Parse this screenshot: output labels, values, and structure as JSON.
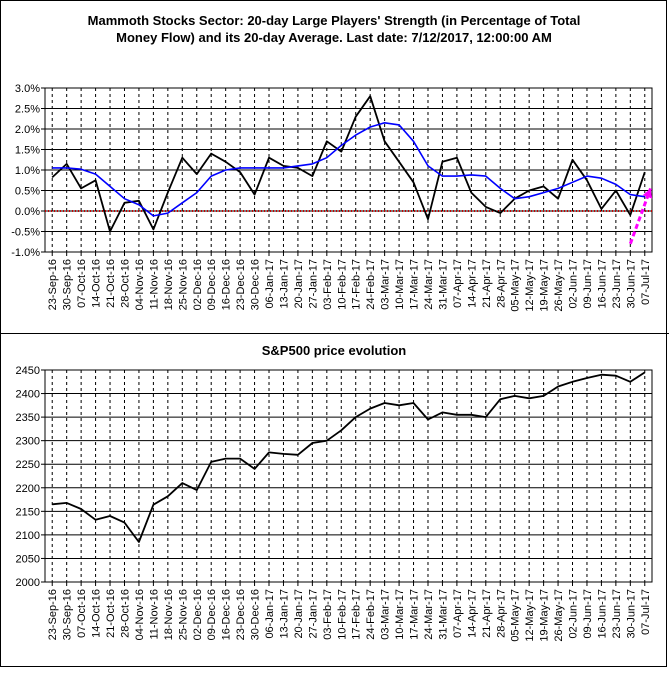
{
  "chart_data": [
    {
      "type": "line",
      "title_lines": [
        "Mammoth Stocks Sector: 20-day Large Players' Strength (in Percentage of Total",
        "Money Flow) and its 20-day Average. Last date: 7/12/2017, 12:00:00 AM"
      ],
      "ylim": [
        -1.0,
        3.0
      ],
      "y_ticks": [
        "3.0%",
        "2.5%",
        "2.0%",
        "1.5%",
        "1.0%",
        "0.5%",
        "0.0%",
        "-0.5%",
        "-1.0%"
      ],
      "y_tick_values": [
        3.0,
        2.5,
        2.0,
        1.5,
        1.0,
        0.5,
        0.0,
        -0.5,
        -1.0
      ],
      "categories": [
        "23-Sep-16",
        "30-Sep-16",
        "07-Oct-16",
        "14-Oct-16",
        "21-Oct-16",
        "28-Oct-16",
        "04-Nov-16",
        "11-Nov-16",
        "18-Nov-16",
        "25-Nov-16",
        "02-Dec-16",
        "09-Dec-16",
        "16-Dec-16",
        "23-Dec-16",
        "30-Dec-16",
        "06-Jan-17",
        "13-Jan-17",
        "20-Jan-17",
        "27-Jan-17",
        "03-Feb-17",
        "10-Feb-17",
        "17-Feb-17",
        "24-Feb-17",
        "03-Mar-17",
        "10-Mar-17",
        "17-Mar-17",
        "24-Mar-17",
        "31-Mar-17",
        "07-Apr-17",
        "14-Apr-17",
        "21-Apr-17",
        "28-Apr-17",
        "05-May-17",
        "12-May-17",
        "19-May-17",
        "26-May-17",
        "02-Jun-17",
        "09-Jun-17",
        "16-Jun-17",
        "23-Jun-17",
        "30-Jun-17",
        "07-Jul-17"
      ],
      "series": [
        {
          "key": "strength",
          "color": "#000000",
          "values": [
            0.82,
            1.15,
            0.55,
            0.75,
            -0.5,
            0.2,
            0.25,
            -0.45,
            0.45,
            1.3,
            0.9,
            1.4,
            1.2,
            0.95,
            0.4,
            1.3,
            1.1,
            1.05,
            0.85,
            1.7,
            1.45,
            2.3,
            2.8,
            1.7,
            1.2,
            0.7,
            -0.2,
            1.2,
            1.3,
            0.45,
            0.1,
            -0.05,
            0.3,
            0.5,
            0.6,
            0.3,
            1.25,
            0.75,
            0.05,
            0.5,
            -0.1,
            0.95
          ]
        },
        {
          "key": "avg20",
          "color": "#0000ff",
          "values": [
            1.05,
            1.05,
            1.02,
            0.9,
            0.6,
            0.3,
            0.15,
            -0.12,
            -0.05,
            0.2,
            0.45,
            0.85,
            1.0,
            1.05,
            1.05,
            1.05,
            1.05,
            1.1,
            1.15,
            1.3,
            1.6,
            1.85,
            2.05,
            2.15,
            2.1,
            1.7,
            1.1,
            0.85,
            0.85,
            0.88,
            0.85,
            0.55,
            0.3,
            0.35,
            0.45,
            0.55,
            0.7,
            0.85,
            0.8,
            0.65,
            0.4,
            0.35
          ]
        }
      ],
      "zero_line_color": "#cc0000",
      "trend_arrow_color": "#ff00ff",
      "trend_arrow": {
        "from": [
          40.0,
          -0.8
        ],
        "to": [
          41.4,
          0.55
        ]
      }
    },
    {
      "type": "line",
      "title": "S&P500 price evolution",
      "ylim": [
        2000,
        2450
      ],
      "y_ticks": [
        "2450",
        "2400",
        "2350",
        "2300",
        "2250",
        "2200",
        "2150",
        "2100",
        "2050",
        "2000"
      ],
      "y_tick_values": [
        2450,
        2400,
        2350,
        2300,
        2250,
        2200,
        2150,
        2100,
        2050,
        2000
      ],
      "categories": [
        "23-Sep-16",
        "30-Sep-16",
        "07-Oct-16",
        "14-Oct-16",
        "21-Oct-16",
        "28-Oct-16",
        "04-Nov-16",
        "11-Nov-16",
        "18-Nov-16",
        "25-Nov-16",
        "02-Dec-16",
        "09-Dec-16",
        "16-Dec-16",
        "23-Dec-16",
        "30-Dec-16",
        "06-Jan-17",
        "13-Jan-17",
        "20-Jan-17",
        "27-Jan-17",
        "03-Feb-17",
        "10-Feb-17",
        "17-Feb-17",
        "24-Feb-17",
        "03-Mar-17",
        "10-Mar-17",
        "17-Mar-17",
        "24-Mar-17",
        "31-Mar-17",
        "07-Apr-17",
        "14-Apr-17",
        "21-Apr-17",
        "28-Apr-17",
        "05-May-17",
        "12-May-17",
        "19-May-17",
        "26-May-17",
        "02-Jun-17",
        "09-Jun-17",
        "16-Jun-17",
        "23-Jun-17",
        "30-Jun-17",
        "07-Jul-17"
      ],
      "series": [
        {
          "key": "sp500",
          "color": "#000000",
          "values": [
            2165,
            2168,
            2155,
            2132,
            2140,
            2126,
            2085,
            2164,
            2182,
            2210,
            2195,
            2255,
            2262,
            2262,
            2240,
            2275,
            2272,
            2270,
            2295,
            2300,
            2322,
            2350,
            2368,
            2380,
            2375,
            2380,
            2345,
            2360,
            2355,
            2355,
            2350,
            2388,
            2395,
            2390,
            2395,
            2415,
            2425,
            2433,
            2440,
            2438,
            2425,
            2445
          ]
        }
      ]
    }
  ]
}
